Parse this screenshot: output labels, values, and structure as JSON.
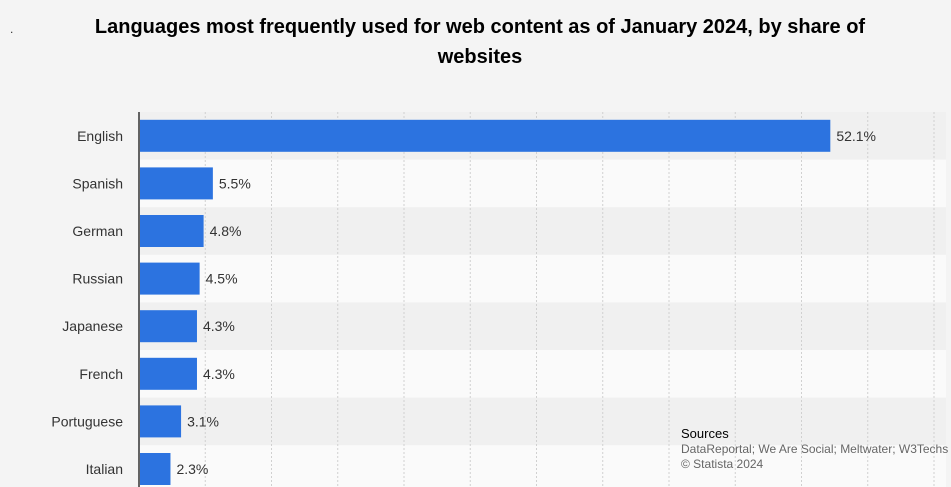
{
  "marker": ".",
  "chart_data": {
    "type": "bar",
    "orientation": "horizontal",
    "title": "Languages most frequently used for web content as of January 2024, by share of websites",
    "categories": [
      "English",
      "Spanish",
      "German",
      "Russian",
      "Japanese",
      "French",
      "Portuguese",
      "Italian"
    ],
    "values": [
      52.1,
      5.5,
      4.8,
      4.5,
      4.3,
      4.3,
      3.1,
      2.3
    ],
    "value_labels": [
      "52.1%",
      "5.5%",
      "4.8%",
      "4.5%",
      "4.3%",
      "4.3%",
      "3.1%",
      "2.3%"
    ],
    "xlim": [
      0,
      60
    ],
    "grid": true,
    "bar_color": "#2c73e0",
    "xlabel": "",
    "ylabel": ""
  },
  "sources": {
    "heading": "Sources",
    "line1": "DataReportal; We Are Social; Meltwater; W3Techs",
    "line2": "© Statista 2024"
  }
}
